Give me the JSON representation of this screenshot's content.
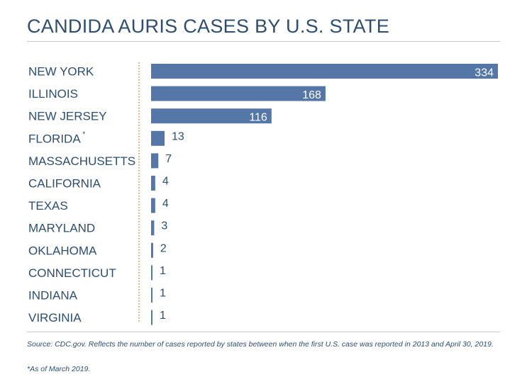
{
  "title": "CANDIDA AURIS CASES BY U.S. STATE",
  "colors": {
    "bar": "#5477a8",
    "text": "#2d4e6e",
    "divider": "#d9822b"
  },
  "chart_data": {
    "type": "bar",
    "orientation": "horizontal",
    "categories": [
      "NEW YORK",
      "ILLINOIS",
      "NEW JERSEY",
      "FLORIDA",
      "MASSACHUSETTS",
      "CALIFORNIA",
      "TEXAS",
      "MARYLAND",
      "OKLAHOMA",
      "CONNECTICUT",
      "INDIANA",
      "VIRGINIA"
    ],
    "category_marks": [
      "",
      "",
      "",
      "*",
      "",
      "",
      "",
      "",
      "",
      "",
      "",
      ""
    ],
    "values": [
      334,
      168,
      116,
      13,
      7,
      4,
      4,
      3,
      2,
      1,
      1,
      1
    ],
    "xlim": [
      0,
      334
    ],
    "grid": false,
    "legend": "none"
  },
  "source": "Source: CDC.gov. Reflects the number of cases reported by states between when the first U.S. case was reported in 2013 and April 30, 2019.",
  "footnote": "*As of March 2019."
}
